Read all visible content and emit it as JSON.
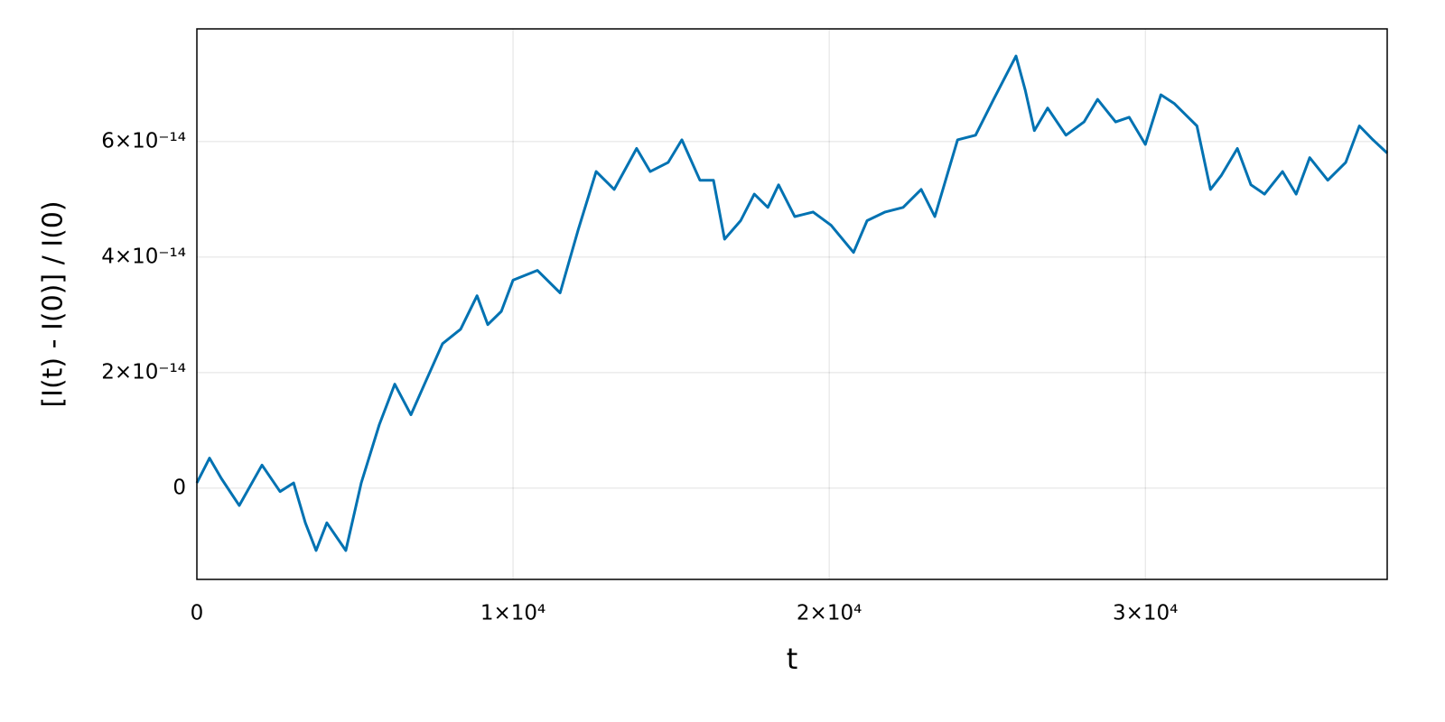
{
  "chart_data": {
    "type": "line",
    "xlabel": "t",
    "ylabel": "[I(t) - I(0)] / I(0)",
    "x": [
      0,
      400,
      770,
      1340,
      2060,
      2630,
      3060,
      3430,
      3770,
      4110,
      4710,
      5200,
      5770,
      6260,
      6770,
      7200,
      7770,
      8340,
      8860,
      9200,
      9630,
      10000,
      10770,
      11490,
      12060,
      12630,
      13200,
      13910,
      14340,
      14910,
      15340,
      15910,
      16340,
      16690,
      17200,
      17630,
      18060,
      18400,
      18910,
      19490,
      20060,
      20770,
      21200,
      21770,
      22340,
      22910,
      23340,
      24060,
      24630,
      25200,
      25910,
      26200,
      26490,
      26910,
      27490,
      28060,
      28490,
      29060,
      29490,
      30000,
      30490,
      30910,
      31630,
      32060,
      32400,
      32910,
      33340,
      33770,
      34340,
      34770,
      35200,
      35770,
      36340,
      36770,
      37200,
      37650
    ],
    "series": [
      {
        "name": "I",
        "color": "#0072b2",
        "values": [
          9e-16,
          5.2e-15,
          1.7e-15,
          -3e-15,
          4e-15,
          -6e-16,
          9e-16,
          -6e-15,
          -1.08e-14,
          -6e-15,
          -1.08e-14,
          9e-16,
          1.1e-14,
          1.8e-14,
          1.27e-14,
          1.8e-14,
          2.5e-14,
          2.75e-14,
          3.33e-14,
          2.83e-14,
          3.06e-14,
          3.6e-14,
          3.77e-14,
          3.38e-14,
          4.47e-14,
          5.48e-14,
          5.17e-14,
          5.88e-14,
          5.48e-14,
          5.64e-14,
          6.03e-14,
          5.33e-14,
          5.33e-14,
          4.31e-14,
          4.63e-14,
          5.09e-14,
          4.86e-14,
          5.25e-14,
          4.7e-14,
          4.78e-14,
          4.55e-14,
          4.08e-14,
          4.63e-14,
          4.78e-14,
          4.86e-14,
          5.17e-14,
          4.7e-14,
          6.03e-14,
          6.11e-14,
          6.73e-14,
          7.48e-14,
          6.89e-14,
          6.19e-14,
          6.58e-14,
          6.11e-14,
          6.34e-14,
          6.73e-14,
          6.34e-14,
          6.42e-14,
          5.95e-14,
          6.81e-14,
          6.66e-14,
          6.27e-14,
          5.17e-14,
          5.41e-14,
          5.88e-14,
          5.25e-14,
          5.09e-14,
          5.48e-14,
          5.09e-14,
          5.72e-14,
          5.33e-14,
          5.64e-14,
          6.27e-14,
          6.03e-14,
          5.8e-14
        ]
      }
    ],
    "xlim": [
      0,
      37650
    ],
    "ylim": [
      -1.58e-14,
      7.95e-14
    ],
    "xticks": [
      0,
      {
        "value": 10000,
        "label": "1×10⁴"
      },
      {
        "value": 20000,
        "label": "2×10⁴"
      },
      {
        "value": 30000,
        "label": "3×10⁴"
      }
    ],
    "yticks": [
      0,
      {
        "value": 2e-14,
        "label": "2×10⁻¹⁴"
      },
      {
        "value": 4e-14,
        "label": "4×10⁻¹⁴"
      },
      {
        "value": 6e-14,
        "label": "6×10⁻¹⁴"
      }
    ],
    "grid": true
  }
}
